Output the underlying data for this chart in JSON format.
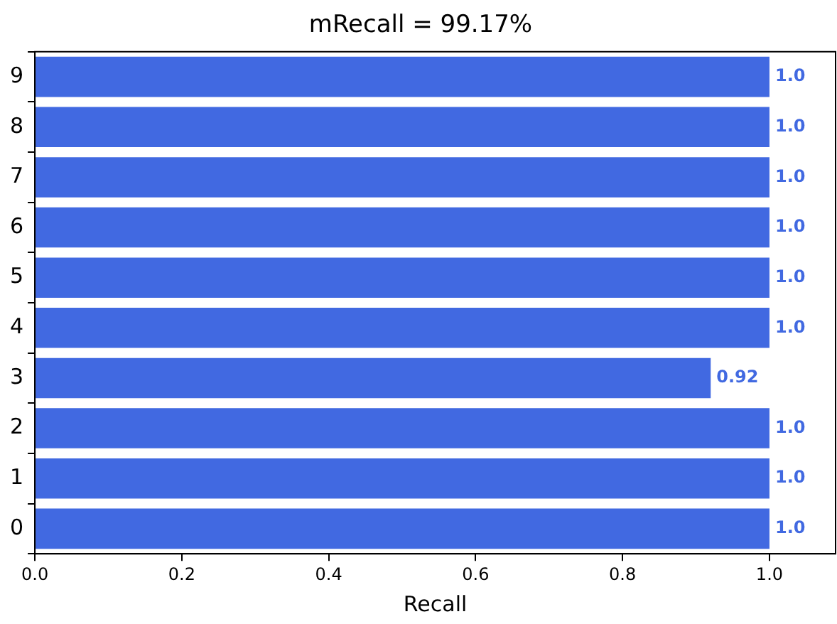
{
  "chart_data": {
    "type": "bar",
    "orientation": "horizontal",
    "title": "mRecall = 99.17%",
    "xlabel": "Recall",
    "categories": [
      "9",
      "8",
      "7",
      "6",
      "5",
      "4",
      "3",
      "2",
      "1",
      "0"
    ],
    "values": [
      1.0,
      1.0,
      1.0,
      1.0,
      1.0,
      1.0,
      0.92,
      1.0,
      1.0,
      1.0
    ],
    "value_labels": [
      "1.0",
      "1.0",
      "1.0",
      "1.0",
      "1.0",
      "1.0",
      "0.92",
      "1.0",
      "1.0",
      "1.0"
    ],
    "color": "#4169e1",
    "xlim": [
      0,
      1.09
    ],
    "xticks": [
      {
        "value": 0,
        "label": "0.0"
      },
      {
        "value": 0.2,
        "label": "0.2"
      },
      {
        "value": 0.4,
        "label": "0.4"
      },
      {
        "value": 0.6,
        "label": "0.6"
      },
      {
        "value": 0.8,
        "label": "0.8"
      },
      {
        "value": 1.0,
        "label": "1.0"
      }
    ],
    "grid": false,
    "legend": false
  }
}
